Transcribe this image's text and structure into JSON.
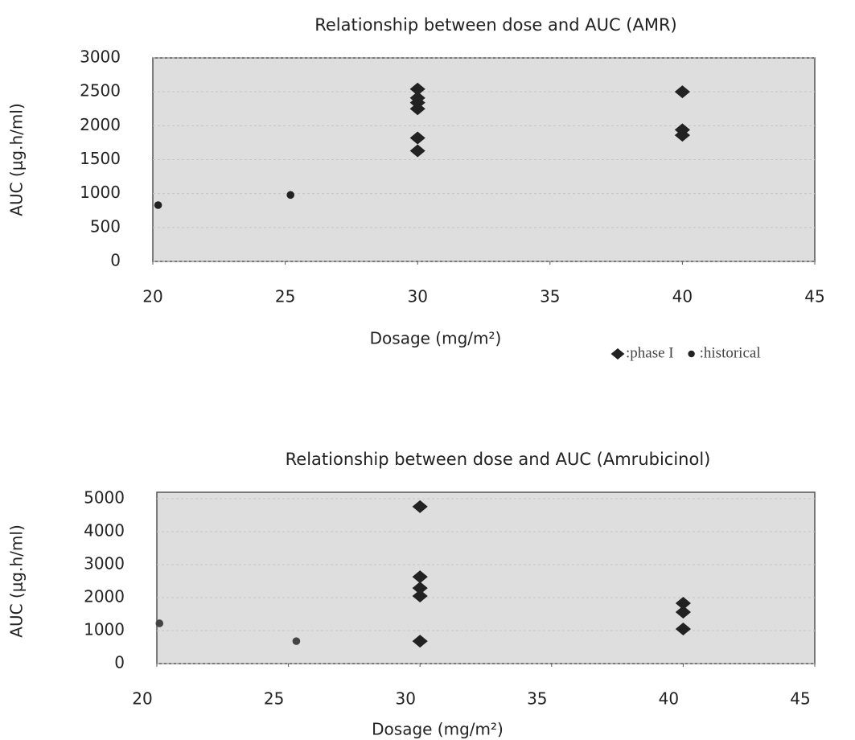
{
  "chart_data": [
    {
      "type": "scatter",
      "title": "Relationship between dose and AUC (AMR)",
      "x_label": "Dosage (mg/m²)",
      "y_label": "AUC (μg.h/ml)",
      "xlim": [
        20,
        45
      ],
      "xticks": [
        20,
        25,
        30,
        35,
        40,
        45
      ],
      "ylim": [
        0,
        3000
      ],
      "yticks": [
        0,
        500,
        1000,
        1500,
        2000,
        2500,
        3000
      ],
      "grid": true,
      "series": [
        {
          "name": ":phase I",
          "marker": "diamond",
          "color": "#222222",
          "x": [
            30,
            30,
            30,
            30,
            30,
            30,
            40,
            40,
            40
          ],
          "values": [
            2540,
            2410,
            2340,
            2250,
            1820,
            1630,
            2500,
            1940,
            1860
          ]
        },
        {
          "name": ":historical",
          "marker": "circle",
          "color": "#222222",
          "x": [
            20.2,
            25.2
          ],
          "values": [
            830,
            980
          ]
        }
      ]
    },
    {
      "type": "scatter",
      "title": "Relationship between dose and AUC (Amrubicinol)",
      "x_label": "Dosage (mg/m²)",
      "y_label": "AUC (μg.h/ml)",
      "xlim": [
        20,
        45
      ],
      "xticks": [
        20,
        25,
        30,
        35,
        40,
        45
      ],
      "ylim": [
        0,
        5000
      ],
      "yticks": [
        0,
        1000,
        2000,
        3000,
        4000,
        5000
      ],
      "grid": true,
      "series": [
        {
          "marker": "diamond",
          "color": "#222222",
          "x": [
            30,
            30,
            30,
            30,
            30,
            40,
            40,
            40
          ],
          "values": [
            4760,
            2630,
            2290,
            2050,
            680,
            1830,
            1560,
            1050
          ]
        },
        {
          "marker": "circle",
          "color": "#444444",
          "x": [
            20.1,
            25.3
          ],
          "values": [
            1220,
            680
          ]
        }
      ]
    }
  ]
}
